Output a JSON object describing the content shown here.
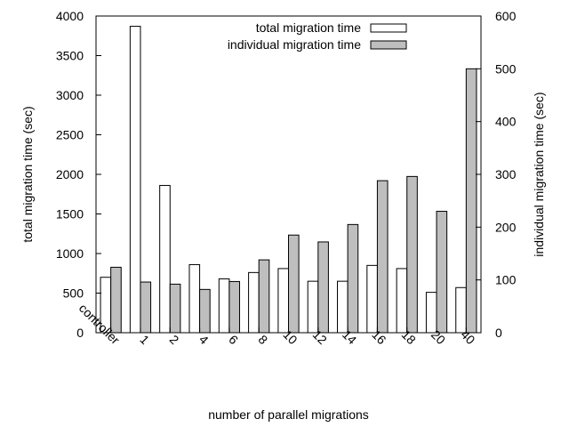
{
  "chart_data": {
    "type": "bar",
    "categories": [
      "controller",
      "1",
      "2",
      "4",
      "6",
      "8",
      "10",
      "12",
      "14",
      "16",
      "18",
      "20",
      "40"
    ],
    "series": [
      {
        "name": "total migration time",
        "axis": "left",
        "color": "#ffffff",
        "values": [
          700,
          3870,
          1860,
          860,
          680,
          760,
          810,
          650,
          650,
          850,
          810,
          510,
          570
        ]
      },
      {
        "name": "individual migration time",
        "axis": "right",
        "color": "#bebebe",
        "values": [
          124,
          96,
          92,
          82,
          97,
          138,
          185,
          172,
          205,
          288,
          296,
          230,
          500
        ]
      }
    ],
    "xlabel": "number of parallel migrations",
    "ylabel": "total migration time (sec)",
    "y2label": "individual migration time (sec)",
    "ylim": [
      0,
      4000
    ],
    "y2lim": [
      0,
      600
    ],
    "yticks": [
      0,
      500,
      1000,
      1500,
      2000,
      2500,
      3000,
      3500,
      4000
    ],
    "y2ticks": [
      0,
      100,
      200,
      300,
      400,
      500,
      600
    ],
    "legend_position": "top-right",
    "grid": false
  }
}
